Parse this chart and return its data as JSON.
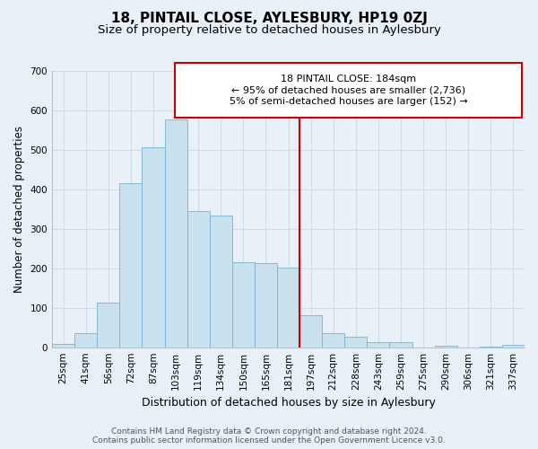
{
  "title": "18, PINTAIL CLOSE, AYLESBURY, HP19 0ZJ",
  "subtitle": "Size of property relative to detached houses in Aylesbury",
  "xlabel": "Distribution of detached houses by size in Aylesbury",
  "ylabel": "Number of detached properties",
  "bar_labels": [
    "25sqm",
    "41sqm",
    "56sqm",
    "72sqm",
    "87sqm",
    "103sqm",
    "119sqm",
    "134sqm",
    "150sqm",
    "165sqm",
    "181sqm",
    "197sqm",
    "212sqm",
    "228sqm",
    "243sqm",
    "259sqm",
    "275sqm",
    "290sqm",
    "306sqm",
    "321sqm",
    "337sqm"
  ],
  "bar_values": [
    8,
    35,
    112,
    415,
    506,
    578,
    346,
    334,
    215,
    213,
    201,
    81,
    36,
    26,
    13,
    13,
    0,
    3,
    0,
    2,
    5
  ],
  "bar_color": "#c9e0ee",
  "bar_edge_color": "#7ab3cf",
  "vline_x_idx": 10,
  "vline_color": "#cc0000",
  "annotation_line1": "18 PINTAIL CLOSE: 184sqm",
  "annotation_line2": "← 95% of detached houses are smaller (2,736)",
  "annotation_line3": "5% of semi-detached houses are larger (152) →",
  "annotation_box_color": "#ffffff",
  "annotation_box_edge": "#cc0000",
  "ylim": [
    0,
    700
  ],
  "yticks": [
    0,
    100,
    200,
    300,
    400,
    500,
    600,
    700
  ],
  "footer": "Contains HM Land Registry data © Crown copyright and database right 2024.\nContains public sector information licensed under the Open Government Licence v3.0.",
  "bg_color": "#e8f0f8",
  "grid_color": "#d0dce8",
  "title_fontsize": 11,
  "subtitle_fontsize": 9.5,
  "xlabel_fontsize": 9,
  "ylabel_fontsize": 8.5,
  "tick_fontsize": 7.5,
  "footer_fontsize": 6.5
}
